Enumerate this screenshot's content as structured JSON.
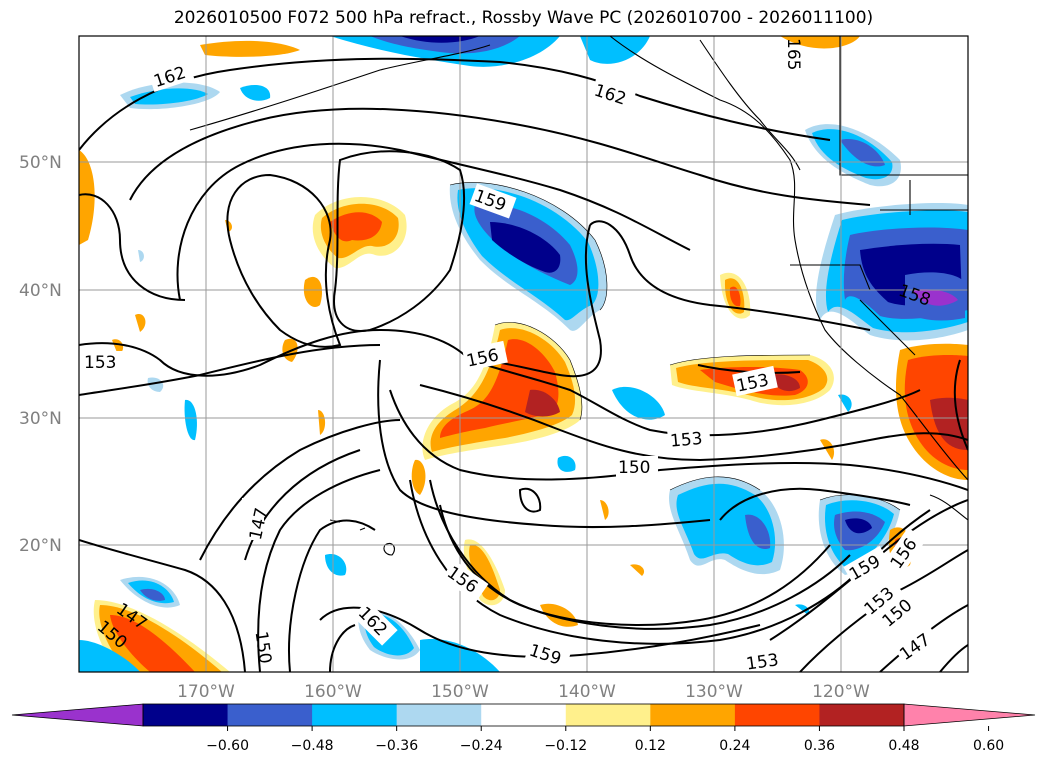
{
  "title": "2026010500 F072 500 hPa refract., Rossby Wave PC (2026010700 - 2026011100)",
  "map": {
    "lat_labels": [
      "50°N",
      "40°N",
      "30°N",
      "20°N"
    ],
    "lon_labels": [
      "170°W",
      "160°W",
      "150°W",
      "140°W",
      "130°W",
      "120°W"
    ],
    "contour_labels": [
      {
        "text": "162"
      },
      {
        "text": "162"
      },
      {
        "text": "165"
      },
      {
        "text": "159"
      },
      {
        "text": "156"
      },
      {
        "text": "153"
      },
      {
        "text": "153"
      },
      {
        "text": "153"
      },
      {
        "text": "150"
      },
      {
        "text": "147"
      },
      {
        "text": "150"
      },
      {
        "text": "156"
      },
      {
        "text": "162"
      },
      {
        "text": "159"
      },
      {
        "text": "153"
      },
      {
        "text": "147"
      },
      {
        "text": "150"
      },
      {
        "text": "159"
      },
      {
        "text": "156"
      },
      {
        "text": "153"
      },
      {
        "text": "150"
      },
      {
        "text": "147"
      },
      {
        "text": "158"
      }
    ],
    "colors": {
      "purple": "#9a32cd",
      "navy": "#00008b",
      "blue": "#3a5fcd",
      "cyan": "#00bfff",
      "lightblue": "#add8f0",
      "white": "#ffffff",
      "lightyellow": "#fff08c",
      "orange": "#ffa500",
      "orangered": "#ff4500",
      "firebrick": "#b22222",
      "pink": "#ff82ab"
    }
  },
  "colorbar": {
    "ticks": [
      "−0.60",
      "−0.48",
      "−0.36",
      "−0.24",
      "−0.12",
      "0.12",
      "0.24",
      "0.36",
      "0.48",
      "0.60"
    ],
    "segments": [
      "#9a32cd",
      "#00008b",
      "#3a5fcd",
      "#00bfff",
      "#add8f0",
      "#ffffff",
      "#fff08c",
      "#ffa500",
      "#ff4500",
      "#b22222",
      "#ff82ab"
    ]
  }
}
